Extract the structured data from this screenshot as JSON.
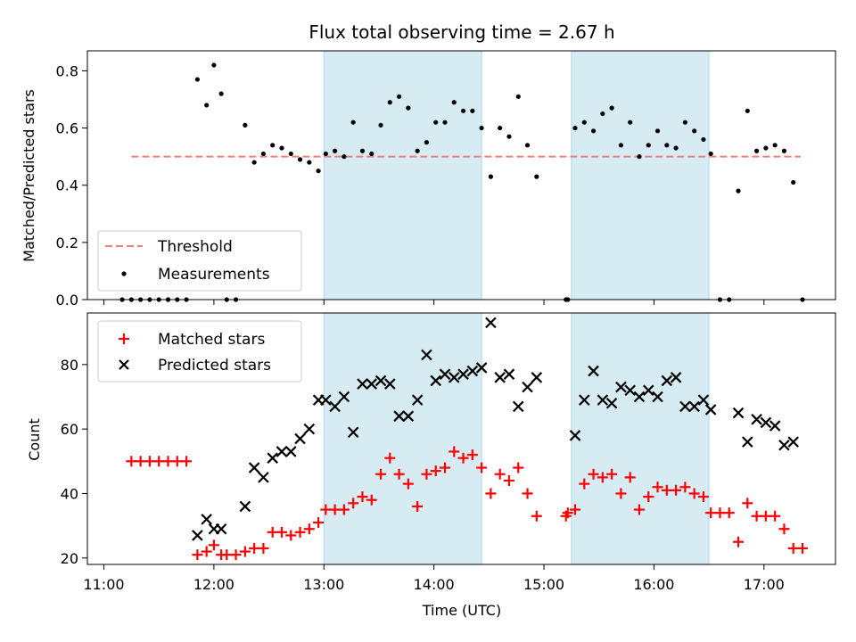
{
  "chart_data": [
    {
      "type": "scatter",
      "title": "Flux total observing time = 2.67 h",
      "ylabel": "Matched/Predicted stars",
      "xlabel": "",
      "xlim": [
        "10:51",
        "17:39"
      ],
      "ylim": [
        0,
        0.87
      ],
      "y_ticks": [
        "0.0",
        "0.2",
        "0.4",
        "0.6",
        "0.8"
      ],
      "shaded_intervals": [
        [
          "13:00",
          "14:26"
        ],
        [
          "15:15",
          "16:30"
        ]
      ],
      "legend": {
        "placement": "lower-left",
        "entries": [
          "Threshold",
          "Measurements"
        ]
      },
      "threshold": {
        "name": "Threshold",
        "value": 0.5,
        "x_range": [
          "11:15",
          "17:20"
        ],
        "color": "#f08080"
      },
      "series": [
        {
          "name": "Measurements",
          "color": "#000000",
          "points": [
            [
              "11:10",
              0
            ],
            [
              "11:15",
              0
            ],
            [
              "11:20",
              0
            ],
            [
              "11:25",
              0
            ],
            [
              "11:30",
              0
            ],
            [
              "11:35",
              0
            ],
            [
              "11:40",
              0
            ],
            [
              "11:45",
              0
            ],
            [
              "11:51",
              0.77
            ],
            [
              "11:56",
              0.68
            ],
            [
              "12:00",
              0.82
            ],
            [
              "12:04",
              0.72
            ],
            [
              "12:07",
              0
            ],
            [
              "12:12",
              0
            ],
            [
              "12:17",
              0.61
            ],
            [
              "12:22",
              0.48
            ],
            [
              "12:27",
              0.51
            ],
            [
              "12:32",
              0.54
            ],
            [
              "12:37",
              0.53
            ],
            [
              "12:42",
              0.51
            ],
            [
              "12:47",
              0.49
            ],
            [
              "12:52",
              0.48
            ],
            [
              "12:57",
              0.45
            ],
            [
              "13:01",
              0.51
            ],
            [
              "13:06",
              0.52
            ],
            [
              "13:11",
              0.5
            ],
            [
              "13:16",
              0.62
            ],
            [
              "13:21",
              0.52
            ],
            [
              "13:26",
              0.51
            ],
            [
              "13:31",
              0.61
            ],
            [
              "13:36",
              0.69
            ],
            [
              "13:41",
              0.71
            ],
            [
              "13:46",
              0.67
            ],
            [
              "13:51",
              0.52
            ],
            [
              "13:56",
              0.55
            ],
            [
              "14:01",
              0.62
            ],
            [
              "14:06",
              0.62
            ],
            [
              "14:11",
              0.69
            ],
            [
              "14:16",
              0.66
            ],
            [
              "14:21",
              0.66
            ],
            [
              "14:26",
              0.6
            ],
            [
              "14:31",
              0.43
            ],
            [
              "14:36",
              0.6
            ],
            [
              "14:41",
              0.57
            ],
            [
              "14:46",
              0.71
            ],
            [
              "14:51",
              0.54
            ],
            [
              "14:56",
              0.43
            ],
            [
              "15:12",
              0
            ],
            [
              "15:13",
              0
            ],
            [
              "15:17",
              0.6
            ],
            [
              "15:22",
              0.62
            ],
            [
              "15:27",
              0.59
            ],
            [
              "15:32",
              0.65
            ],
            [
              "15:37",
              0.67
            ],
            [
              "15:42",
              0.54
            ],
            [
              "15:47",
              0.62
            ],
            [
              "15:52",
              0.5
            ],
            [
              "15:57",
              0.54
            ],
            [
              "16:02",
              0.59
            ],
            [
              "16:07",
              0.54
            ],
            [
              "16:12",
              0.53
            ],
            [
              "16:17",
              0.62
            ],
            [
              "16:22",
              0.59
            ],
            [
              "16:27",
              0.56
            ],
            [
              "16:31",
              0.51
            ],
            [
              "16:36",
              0
            ],
            [
              "16:41",
              0
            ],
            [
              "16:46",
              0.38
            ],
            [
              "16:51",
              0.66
            ],
            [
              "16:56",
              0.52
            ],
            [
              "17:01",
              0.53
            ],
            [
              "17:06",
              0.54
            ],
            [
              "17:11",
              0.52
            ],
            [
              "17:16",
              0.41
            ],
            [
              "17:21",
              0
            ]
          ]
        }
      ]
    },
    {
      "type": "scatter",
      "title": "",
      "ylabel": "Count",
      "xlabel": "Time (UTC)",
      "xlim": [
        "10:51",
        "17:39"
      ],
      "ylim": [
        18,
        96
      ],
      "x_ticks": [
        "11:00",
        "12:00",
        "13:00",
        "14:00",
        "15:00",
        "16:00",
        "17:00"
      ],
      "y_ticks": [
        "20",
        "40",
        "60",
        "80"
      ],
      "shaded_intervals": [
        [
          "13:00",
          "14:26"
        ],
        [
          "15:15",
          "16:30"
        ]
      ],
      "legend": {
        "placement": "upper-left",
        "entries": [
          "Matched stars",
          "Predicted stars"
        ]
      },
      "series": [
        {
          "name": "Matched stars",
          "marker": "plus",
          "color": "#ff0000",
          "points": [
            [
              "11:15",
              50
            ],
            [
              "11:20",
              50
            ],
            [
              "11:25",
              50
            ],
            [
              "11:30",
              50
            ],
            [
              "11:35",
              50
            ],
            [
              "11:40",
              50
            ],
            [
              "11:45",
              50
            ],
            [
              "11:51",
              21
            ],
            [
              "11:56",
              22
            ],
            [
              "12:00",
              24
            ],
            [
              "12:04",
              21
            ],
            [
              "12:07",
              21
            ],
            [
              "12:12",
              21
            ],
            [
              "12:17",
              22
            ],
            [
              "12:22",
              23
            ],
            [
              "12:27",
              23
            ],
            [
              "12:32",
              28
            ],
            [
              "12:37",
              28
            ],
            [
              "12:42",
              27
            ],
            [
              "12:47",
              28
            ],
            [
              "12:52",
              29
            ],
            [
              "12:57",
              31
            ],
            [
              "13:01",
              35
            ],
            [
              "13:06",
              35
            ],
            [
              "13:11",
              35
            ],
            [
              "13:16",
              37
            ],
            [
              "13:21",
              39
            ],
            [
              "13:26",
              38
            ],
            [
              "13:31",
              46
            ],
            [
              "13:36",
              51
            ],
            [
              "13:41",
              46
            ],
            [
              "13:46",
              43
            ],
            [
              "13:51",
              36
            ],
            [
              "13:56",
              46
            ],
            [
              "14:01",
              47
            ],
            [
              "14:06",
              48
            ],
            [
              "14:11",
              53
            ],
            [
              "14:16",
              51
            ],
            [
              "14:21",
              52
            ],
            [
              "14:26",
              48
            ],
            [
              "14:31",
              40
            ],
            [
              "14:36",
              46
            ],
            [
              "14:41",
              44
            ],
            [
              "14:46",
              48
            ],
            [
              "14:51",
              40
            ],
            [
              "14:56",
              33
            ],
            [
              "15:12",
              33
            ],
            [
              "15:13",
              34
            ],
            [
              "15:17",
              35
            ],
            [
              "15:22",
              43
            ],
            [
              "15:27",
              46
            ],
            [
              "15:32",
              45
            ],
            [
              "15:37",
              46
            ],
            [
              "15:42",
              40
            ],
            [
              "15:47",
              45
            ],
            [
              "15:52",
              35
            ],
            [
              "15:57",
              39
            ],
            [
              "16:02",
              42
            ],
            [
              "16:07",
              41
            ],
            [
              "16:12",
              41
            ],
            [
              "16:17",
              42
            ],
            [
              "16:22",
              40
            ],
            [
              "16:27",
              39
            ],
            [
              "16:31",
              34
            ],
            [
              "16:36",
              34
            ],
            [
              "16:41",
              34
            ],
            [
              "16:46",
              25
            ],
            [
              "16:51",
              37
            ],
            [
              "16:56",
              33
            ],
            [
              "17:01",
              33
            ],
            [
              "17:06",
              33
            ],
            [
              "17:11",
              29
            ],
            [
              "17:16",
              23
            ],
            [
              "17:21",
              23
            ]
          ]
        },
        {
          "name": "Predicted stars",
          "marker": "x",
          "color": "#000000",
          "points": [
            [
              "11:51",
              27
            ],
            [
              "11:56",
              32
            ],
            [
              "12:00",
              29
            ],
            [
              "12:04",
              29
            ],
            [
              "12:17",
              36
            ],
            [
              "12:22",
              48
            ],
            [
              "12:27",
              45
            ],
            [
              "12:32",
              51
            ],
            [
              "12:37",
              53
            ],
            [
              "12:42",
              53
            ],
            [
              "12:47",
              57
            ],
            [
              "12:52",
              60
            ],
            [
              "12:57",
              69
            ],
            [
              "13:01",
              69
            ],
            [
              "13:06",
              67
            ],
            [
              "13:11",
              70
            ],
            [
              "13:16",
              59
            ],
            [
              "13:21",
              74
            ],
            [
              "13:26",
              74
            ],
            [
              "13:31",
              75
            ],
            [
              "13:36",
              74
            ],
            [
              "13:41",
              64
            ],
            [
              "13:46",
              64
            ],
            [
              "13:51",
              69
            ],
            [
              "13:56",
              83
            ],
            [
              "14:01",
              75
            ],
            [
              "14:06",
              77
            ],
            [
              "14:11",
              76
            ],
            [
              "14:16",
              77
            ],
            [
              "14:21",
              78
            ],
            [
              "14:26",
              79
            ],
            [
              "14:31",
              93
            ],
            [
              "14:36",
              76
            ],
            [
              "14:41",
              77
            ],
            [
              "14:46",
              67
            ],
            [
              "14:51",
              73
            ],
            [
              "14:56",
              76
            ],
            [
              "15:17",
              58
            ],
            [
              "15:22",
              69
            ],
            [
              "15:27",
              78
            ],
            [
              "15:32",
              69
            ],
            [
              "15:37",
              68
            ],
            [
              "15:42",
              73
            ],
            [
              "15:47",
              72
            ],
            [
              "15:52",
              70
            ],
            [
              "15:57",
              72
            ],
            [
              "16:02",
              70
            ],
            [
              "16:07",
              75
            ],
            [
              "16:12",
              76
            ],
            [
              "16:17",
              67
            ],
            [
              "16:22",
              67
            ],
            [
              "16:27",
              69
            ],
            [
              "16:31",
              66
            ],
            [
              "16:46",
              65
            ],
            [
              "16:51",
              56
            ],
            [
              "16:56",
              63
            ],
            [
              "17:01",
              62
            ],
            [
              "17:06",
              61
            ],
            [
              "17:11",
              55
            ],
            [
              "17:16",
              56
            ]
          ]
        }
      ]
    }
  ]
}
